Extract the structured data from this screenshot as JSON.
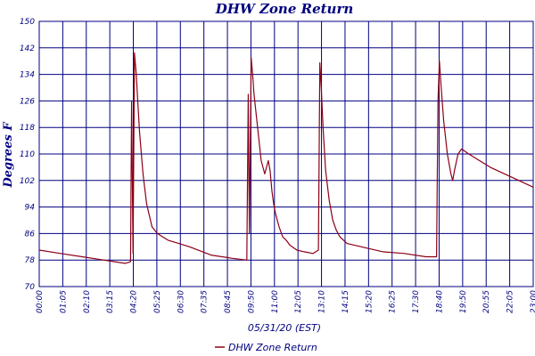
{
  "chart_data": {
    "type": "line",
    "title": "DHW Zone Return",
    "xlabel": "05/31/20 (EST)",
    "ylabel": "Degrees F",
    "ylim": [
      70,
      150
    ],
    "yticks": [
      70,
      78,
      86,
      94,
      102,
      110,
      118,
      126,
      134,
      142,
      150
    ],
    "xlim": [
      0,
      1380
    ],
    "xtick_labels": [
      "00:00",
      "01:05",
      "02:10",
      "03:15",
      "04:20",
      "05:25",
      "06:30",
      "07:35",
      "08:45",
      "09:50",
      "11:00",
      "12:05",
      "13:10",
      "14:15",
      "15:20",
      "16:25",
      "17:30",
      "18:40",
      "19:50",
      "20:55",
      "22:05",
      "23:00"
    ],
    "grid": true,
    "legend_position": "bottom-center",
    "colors": {
      "series": "#8b0016",
      "grid": "#000080",
      "text": "#000080"
    },
    "series": [
      {
        "name": "DHW Zone Return",
        "x": [
          0,
          60,
          120,
          180,
          240,
          255,
          258,
          262,
          266,
          271,
          280,
          290,
          300,
          315,
          330,
          345,
          360,
          390,
          420,
          480,
          540,
          580,
          584,
          587,
          592,
          596,
          600,
          610,
          620,
          630,
          640,
          645,
          650,
          655,
          660,
          670,
          680,
          690,
          700,
          720,
          740,
          765,
          780,
          784,
          788,
          793,
          800,
          810,
          820,
          830,
          840,
          860,
          900,
          960,
          1020,
          1080,
          1110,
          1114,
          1118,
          1123,
          1130,
          1140,
          1150,
          1155,
          1160,
          1170,
          1180,
          1200,
          1230,
          1260,
          1300,
          1340,
          1380
        ],
        "values": [
          81,
          80,
          79,
          78,
          77,
          77.5,
          126,
          80,
          140.5,
          134,
          117,
          104,
          95,
          88,
          86,
          85,
          84,
          83,
          82,
          79.5,
          78.5,
          78,
          128,
          86,
          139,
          134,
          128,
          118,
          108,
          104,
          108,
          105,
          99,
          95,
          92,
          88,
          85,
          84,
          82.5,
          81,
          80.5,
          80,
          81,
          137.5,
          130,
          118,
          105,
          96,
          90,
          87,
          85,
          83,
          82,
          80.5,
          80,
          79,
          79,
          126,
          138,
          130,
          120,
          110,
          104,
          102,
          105,
          110,
          111.5,
          110,
          108,
          106,
          104,
          102,
          100
        ]
      }
    ]
  }
}
